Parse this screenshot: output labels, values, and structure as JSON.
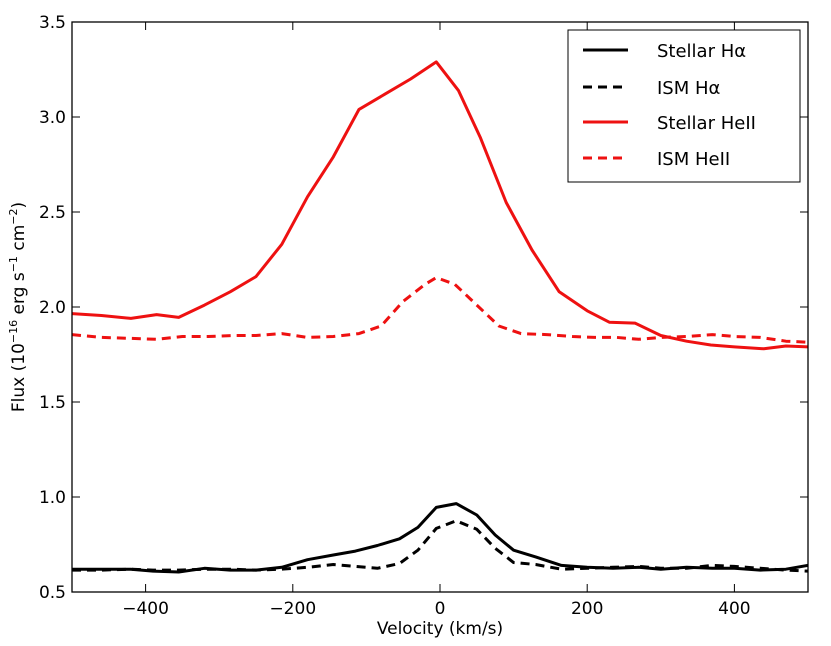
{
  "chart_data": {
    "type": "line",
    "title": "",
    "xlabel": "Velocity (km/s)",
    "ylabel": {
      "prefix": "Flux (10",
      "exp1": "−16",
      "mid": " erg s",
      "exp2": "−1",
      "mid2": " cm",
      "exp3": "−2",
      "suffix": ")"
    },
    "xlim": [
      -500,
      500
    ],
    "ylim": [
      0.5,
      3.5
    ],
    "xticks": [
      -400,
      -200,
      0,
      200,
      400
    ],
    "xtick_labels": [
      "−400",
      "−200",
      "0",
      "200",
      "400"
    ],
    "yticks": [
      0.5,
      1.0,
      1.5,
      2.0,
      2.5,
      3.0,
      3.5
    ],
    "ytick_labels": [
      "0.5",
      "1.0",
      "1.5",
      "2.0",
      "2.5",
      "3.0",
      "3.5"
    ],
    "grid": false,
    "legend_position": "top-right",
    "series": [
      {
        "name": "Stellar Hα",
        "color": "#000000",
        "dash": "solid",
        "points": [
          [
            -500,
            0.62
          ],
          [
            -460,
            0.62
          ],
          [
            -420,
            0.62
          ],
          [
            -390,
            0.61
          ],
          [
            -355,
            0.605
          ],
          [
            -320,
            0.625
          ],
          [
            -285,
            0.615
          ],
          [
            -250,
            0.615
          ],
          [
            -215,
            0.63
          ],
          [
            -180,
            0.67
          ],
          [
            -145,
            0.695
          ],
          [
            -115,
            0.715
          ],
          [
            -85,
            0.745
          ],
          [
            -55,
            0.78
          ],
          [
            -30,
            0.84
          ],
          [
            -5,
            0.945
          ],
          [
            22,
            0.965
          ],
          [
            50,
            0.905
          ],
          [
            75,
            0.8
          ],
          [
            100,
            0.72
          ],
          [
            130,
            0.685
          ],
          [
            165,
            0.64
          ],
          [
            200,
            0.63
          ],
          [
            235,
            0.625
          ],
          [
            270,
            0.63
          ],
          [
            300,
            0.62
          ],
          [
            335,
            0.63
          ],
          [
            370,
            0.625
          ],
          [
            400,
            0.625
          ],
          [
            435,
            0.615
          ],
          [
            470,
            0.62
          ],
          [
            500,
            0.64
          ]
        ]
      },
      {
        "name": "ISM Hα",
        "color": "#000000",
        "dash": "dashed",
        "points": [
          [
            -500,
            0.615
          ],
          [
            -460,
            0.615
          ],
          [
            -420,
            0.62
          ],
          [
            -390,
            0.615
          ],
          [
            -355,
            0.615
          ],
          [
            -320,
            0.62
          ],
          [
            -285,
            0.62
          ],
          [
            -250,
            0.615
          ],
          [
            -215,
            0.62
          ],
          [
            -180,
            0.63
          ],
          [
            -145,
            0.645
          ],
          [
            -115,
            0.635
          ],
          [
            -85,
            0.625
          ],
          [
            -55,
            0.65
          ],
          [
            -30,
            0.72
          ],
          [
            -5,
            0.835
          ],
          [
            22,
            0.875
          ],
          [
            50,
            0.83
          ],
          [
            75,
            0.73
          ],
          [
            100,
            0.655
          ],
          [
            130,
            0.645
          ],
          [
            165,
            0.62
          ],
          [
            200,
            0.625
          ],
          [
            235,
            0.63
          ],
          [
            270,
            0.635
          ],
          [
            300,
            0.625
          ],
          [
            335,
            0.625
          ],
          [
            370,
            0.64
          ],
          [
            400,
            0.635
          ],
          [
            435,
            0.625
          ],
          [
            470,
            0.615
          ],
          [
            500,
            0.61
          ]
        ]
      },
      {
        "name": "Stellar HeII",
        "color": "#ee1111",
        "dash": "solid",
        "points": [
          [
            -500,
            1.965
          ],
          [
            -460,
            1.955
          ],
          [
            -420,
            1.94
          ],
          [
            -385,
            1.96
          ],
          [
            -355,
            1.945
          ],
          [
            -320,
            2.01
          ],
          [
            -285,
            2.08
          ],
          [
            -250,
            2.16
          ],
          [
            -215,
            2.33
          ],
          [
            -180,
            2.58
          ],
          [
            -145,
            2.79
          ],
          [
            -110,
            3.04
          ],
          [
            -75,
            3.12
          ],
          [
            -40,
            3.2
          ],
          [
            -5,
            3.29
          ],
          [
            25,
            3.14
          ],
          [
            55,
            2.89
          ],
          [
            90,
            2.55
          ],
          [
            125,
            2.3
          ],
          [
            162,
            2.08
          ],
          [
            200,
            1.98
          ],
          [
            230,
            1.92
          ],
          [
            265,
            1.915
          ],
          [
            300,
            1.85
          ],
          [
            335,
            1.82
          ],
          [
            368,
            1.8
          ],
          [
            400,
            1.79
          ],
          [
            440,
            1.78
          ],
          [
            470,
            1.795
          ],
          [
            500,
            1.79
          ]
        ]
      },
      {
        "name": "ISM HeII",
        "color": "#ee1111",
        "dash": "dashed",
        "points": [
          [
            -500,
            1.855
          ],
          [
            -460,
            1.84
          ],
          [
            -420,
            1.835
          ],
          [
            -385,
            1.83
          ],
          [
            -350,
            1.845
          ],
          [
            -315,
            1.845
          ],
          [
            -280,
            1.85
          ],
          [
            -250,
            1.85
          ],
          [
            -215,
            1.86
          ],
          [
            -180,
            1.84
          ],
          [
            -145,
            1.845
          ],
          [
            -110,
            1.86
          ],
          [
            -80,
            1.9
          ],
          [
            -50,
            2.03
          ],
          [
            -20,
            2.12
          ],
          [
            -5,
            2.155
          ],
          [
            20,
            2.12
          ],
          [
            50,
            2.01
          ],
          [
            80,
            1.9
          ],
          [
            110,
            1.86
          ],
          [
            145,
            1.855
          ],
          [
            180,
            1.845
          ],
          [
            210,
            1.84
          ],
          [
            240,
            1.84
          ],
          [
            270,
            1.83
          ],
          [
            300,
            1.84
          ],
          [
            335,
            1.845
          ],
          [
            370,
            1.855
          ],
          [
            400,
            1.845
          ],
          [
            435,
            1.84
          ],
          [
            470,
            1.82
          ],
          [
            500,
            1.815
          ]
        ]
      }
    ]
  }
}
